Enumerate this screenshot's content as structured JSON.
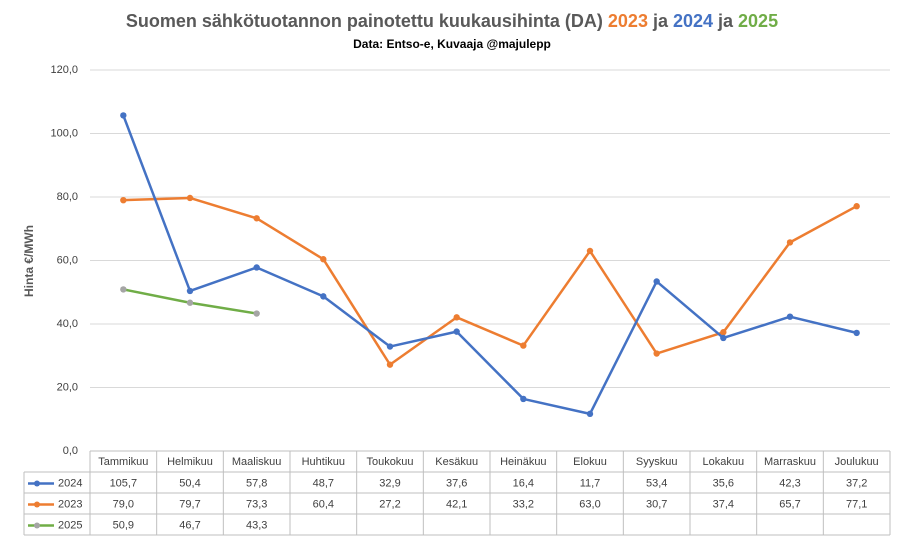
{
  "chart_data": {
    "type": "line",
    "title_parts": [
      {
        "text": "Suomen sähkötuotannon painotettu kuukausihinta (DA)",
        "color": "#595959"
      },
      {
        "text": "2023",
        "color": "#ed7d31"
      },
      {
        "text": "ja",
        "color": "#595959"
      },
      {
        "text": "2024",
        "color": "#4472c4"
      },
      {
        "text": "ja",
        "color": "#595959"
      },
      {
        "text": "2025",
        "color": "#70ad47"
      }
    ],
    "subtitle": "Data: Entso-e, Kuvaaja @majulepp",
    "y_label": "Hinta €/MWh",
    "categories": [
      "Tammikuu",
      "Helmikuu",
      "Maaliskuu",
      "Huhtikuu",
      "Toukokuu",
      "Kesäkuu",
      "Heinäkuu",
      "Elokuu",
      "Syyskuu",
      "Lokakuu",
      "Marraskuu",
      "Joulukuu"
    ],
    "series": [
      {
        "name": "2024",
        "color": "#4472c4",
        "marker_color": "#4472c4",
        "values": [
          105.7,
          50.4,
          57.8,
          48.7,
          32.9,
          37.6,
          16.4,
          11.7,
          53.4,
          35.6,
          42.3,
          37.2
        ],
        "value_labels": [
          "105,7",
          "50,4",
          "57,8",
          "48,7",
          "32,9",
          "37,6",
          "16,4",
          "11,7",
          "53,4",
          "35,6",
          "42,3",
          "37,2"
        ]
      },
      {
        "name": "2023",
        "color": "#ed7d31",
        "marker_color": "#ed7d31",
        "values": [
          79.0,
          79.7,
          73.3,
          60.4,
          27.2,
          42.1,
          33.2,
          63.0,
          30.7,
          37.4,
          65.7,
          77.1
        ],
        "value_labels": [
          "79,0",
          "79,7",
          "73,3",
          "60,4",
          "27,2",
          "42,1",
          "33,2",
          "63,0",
          "30,7",
          "37,4",
          "65,7",
          "77,1"
        ]
      },
      {
        "name": "2025",
        "color": "#70ad47",
        "marker_color": "#a5a5a5",
        "values": [
          50.9,
          46.7,
          43.3,
          null,
          null,
          null,
          null,
          null,
          null,
          null,
          null,
          null
        ],
        "value_labels": [
          "50,9",
          "46,7",
          "43,3",
          null,
          null,
          null,
          null,
          null,
          null,
          null,
          null,
          null
        ]
      }
    ],
    "ylim": [
      0,
      120
    ],
    "yticks": [
      {
        "value": 0,
        "label": "0,0"
      },
      {
        "value": 20,
        "label": "20,0"
      },
      {
        "value": 40,
        "label": "40,0"
      },
      {
        "value": 60,
        "label": "60,0"
      },
      {
        "value": 80,
        "label": "80,0"
      },
      {
        "value": 100,
        "label": "100,0"
      },
      {
        "value": 120,
        "label": "120,0"
      }
    ],
    "grid": true
  }
}
